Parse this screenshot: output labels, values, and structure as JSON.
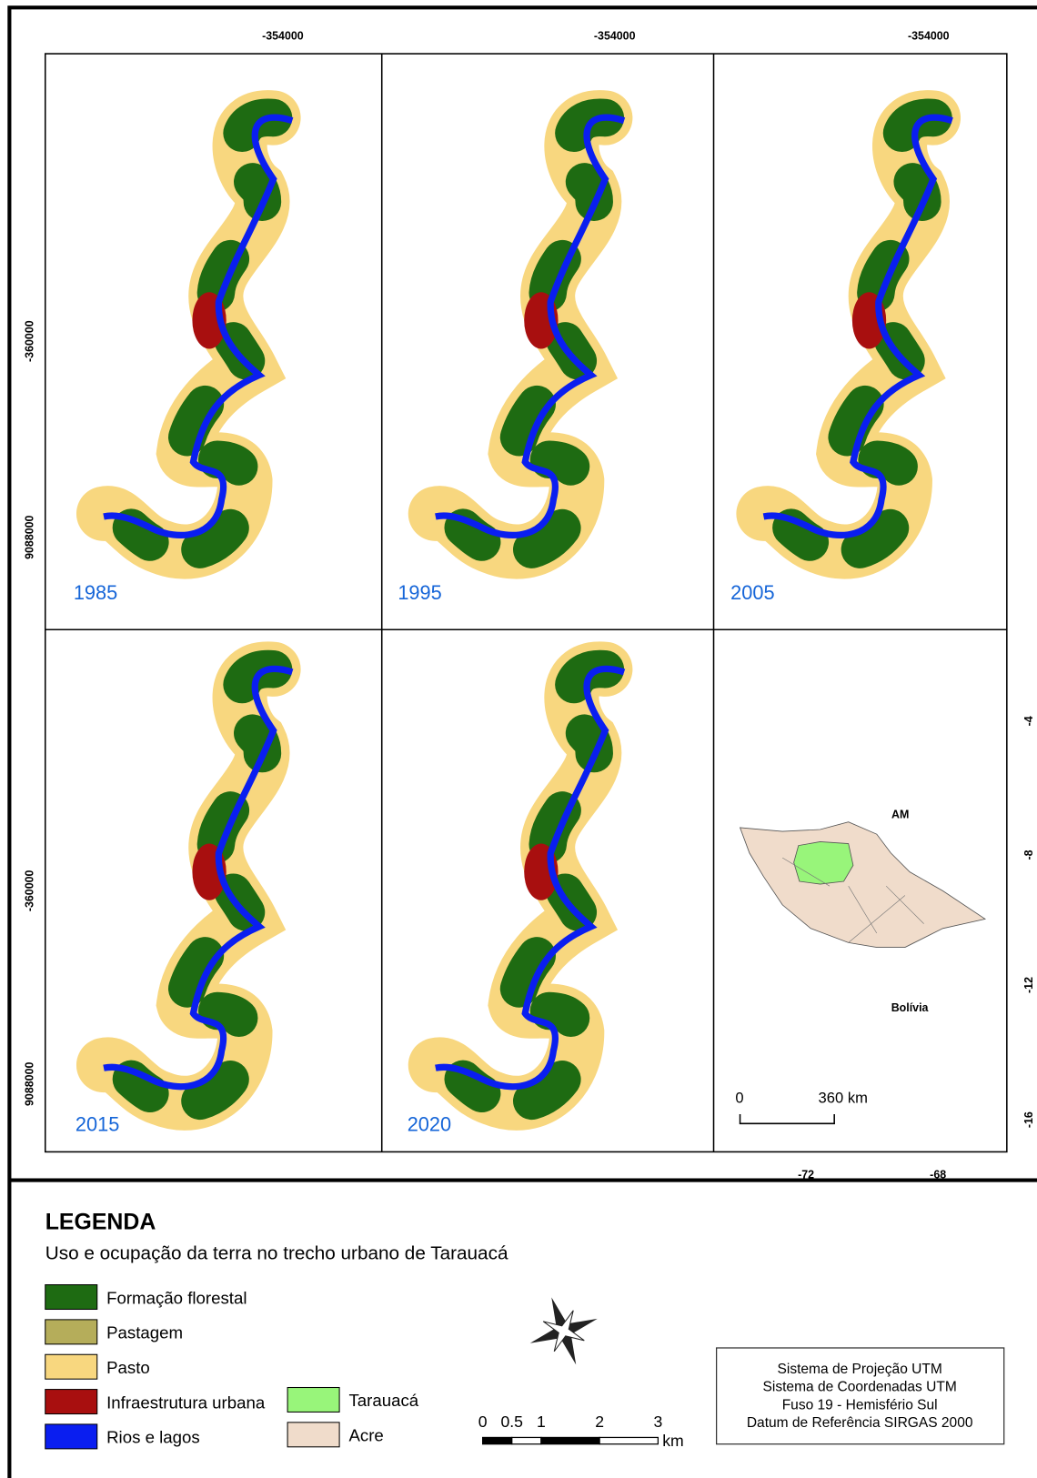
{
  "maps": {
    "top_x_labels": [
      "-354000",
      "-354000",
      "-354000"
    ],
    "left_y_labels": [
      "-360000",
      "9088000",
      "-360000",
      "9088000"
    ],
    "years": [
      "1985",
      "1995",
      "2005",
      "2015",
      "2020"
    ],
    "locator": {
      "labels": [
        "AM",
        "Bolívia"
      ],
      "right_ticks": [
        "-4",
        "-8",
        "-12",
        "-16"
      ],
      "bottom_ticks": [
        "-72",
        "-68"
      ],
      "scale": [
        "0",
        "360 km"
      ]
    }
  },
  "legend": {
    "title": "LEGENDA",
    "subtitle": "Uso e ocupação da terra no trecho urbano de Tarauacá",
    "items": [
      {
        "label": "Formação florestal",
        "color": "#1e6b12"
      },
      {
        "label": "Pastagem",
        "color": "#b5ad5a"
      },
      {
        "label": "Pasto",
        "color": "#f8d77f"
      },
      {
        "label": "Infraestrutura urbana",
        "color": "#a80f0f"
      },
      {
        "label": "Rios e lagos",
        "color": "#0a1ef0"
      },
      {
        "label": "Tarauacá",
        "color": "#98f57a"
      },
      {
        "label": "Acre",
        "color": "#f0dccb"
      }
    ],
    "scale_labels": [
      "0",
      "0.5",
      "1",
      "2",
      "3",
      "km"
    ],
    "info": [
      "Sistema de Projeção UTM",
      "Sistema de Coordenadas UTM",
      "Fuso 19 - Hemisfério Sul",
      "Datum de Referência SIRGAS 2000"
    ]
  }
}
